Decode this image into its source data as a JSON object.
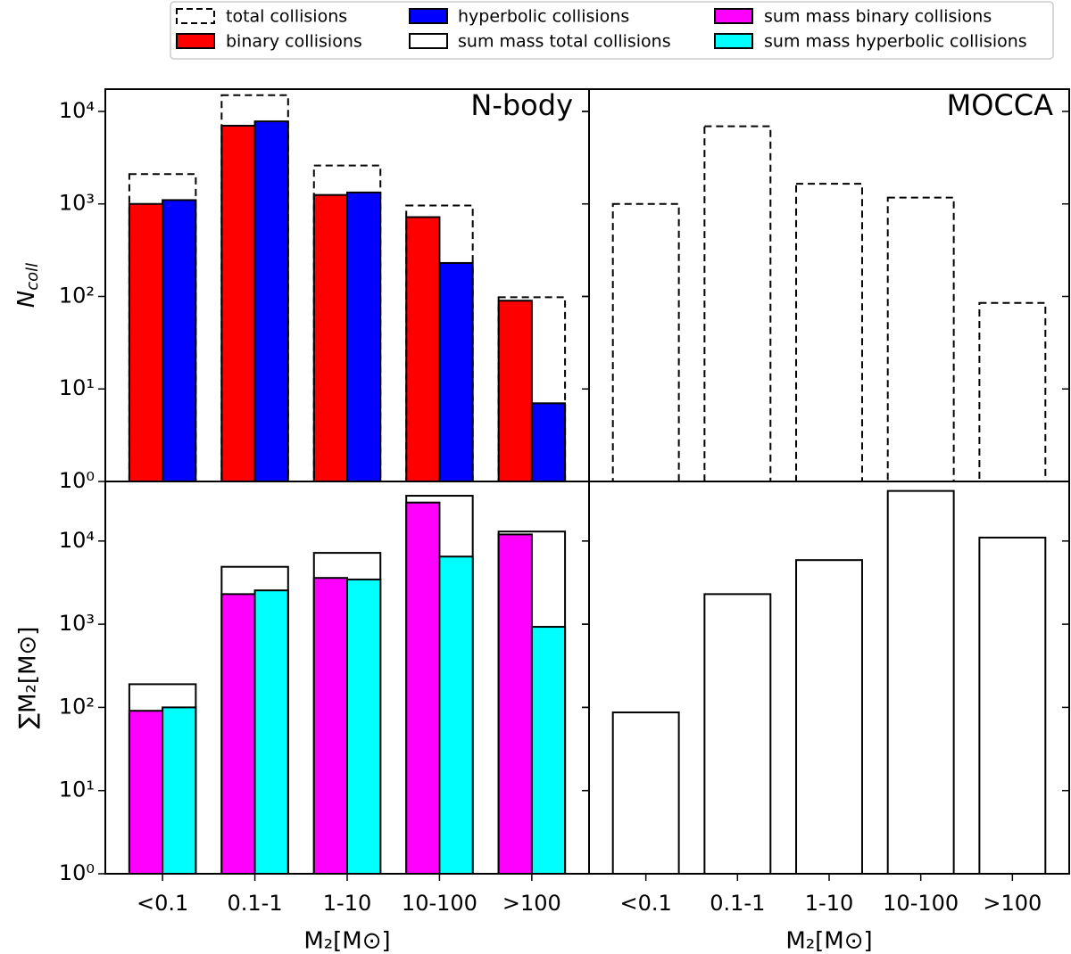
{
  "chart_data": [
    {
      "type": "bar",
      "title": "N-body",
      "log_y": true,
      "ylabel": {
        "main": "N",
        "sub": "coll"
      },
      "ylim": [
        1,
        17400
      ],
      "yticks": [
        {
          "value": 1,
          "label": "10⁰"
        },
        {
          "value": 10,
          "label": "10¹"
        },
        {
          "value": 100,
          "label": "10²"
        },
        {
          "value": 1000,
          "label": "10³"
        },
        {
          "value": 10000,
          "label": "10⁴"
        }
      ],
      "series": [
        {
          "name": "total collisions",
          "color": "#000000",
          "linestyle": "dashed",
          "values": [
            2100,
            15000,
            2600,
            960,
            98
          ]
        },
        {
          "name": "binary collisions",
          "color": "#ff0000",
          "values": [
            1000,
            7000,
            1250,
            720,
            90
          ]
        },
        {
          "name": "hyperbolic collisions",
          "color": "#0000ff",
          "values": [
            1100,
            7800,
            1330,
            230,
            7
          ]
        }
      ]
    },
    {
      "type": "bar",
      "log_y": true,
      "ylabel": "∑M₂[M⊙]",
      "xlabel": "M₂[M⊙]",
      "categories": [
        "<0.1",
        "0.1-1",
        "1-10",
        "10-100",
        ">100"
      ],
      "ylim": [
        1,
        52000
      ],
      "yticks": [
        {
          "value": 1,
          "label": "10⁰"
        },
        {
          "value": 10,
          "label": "10¹"
        },
        {
          "value": 100,
          "label": "10²"
        },
        {
          "value": 1000,
          "label": "10³"
        },
        {
          "value": 10000,
          "label": "10⁴"
        }
      ],
      "series": [
        {
          "name": "sum mass total collisions",
          "color": "#ffffff",
          "values": [
            190,
            4900,
            7200,
            35000,
            13000
          ]
        },
        {
          "name": "sum mass binary collisions",
          "color": "#ff00ff",
          "values": [
            91,
            2300,
            3600,
            29000,
            12000
          ]
        },
        {
          "name": "sum mass hyperbolic collisions",
          "color": "#00ffff",
          "values": [
            100,
            2550,
            3450,
            6500,
            930
          ]
        }
      ]
    },
    {
      "type": "bar",
      "title": "MOCCA",
      "log_y": true,
      "ylim": [
        1,
        17400
      ],
      "yticks": [
        1,
        10,
        100,
        1000,
        10000
      ],
      "series": [
        {
          "name": "total collisions",
          "color": "#000000",
          "linestyle": "dashed",
          "values": [
            1000,
            6900,
            1650,
            1170,
            85
          ]
        }
      ]
    },
    {
      "type": "bar",
      "log_y": true,
      "xlabel": "M₂[M⊙]",
      "categories": [
        "<0.1",
        "0.1-1",
        "1-10",
        "10-100",
        ">100"
      ],
      "ylim": [
        1,
        52000
      ],
      "yticks": [
        1,
        10,
        100,
        1000,
        10000
      ],
      "series": [
        {
          "name": "sum mass total collisions",
          "color": "#ffffff",
          "values": [
            87,
            2300,
            5900,
            40000,
            11000
          ]
        }
      ]
    }
  ]
}
